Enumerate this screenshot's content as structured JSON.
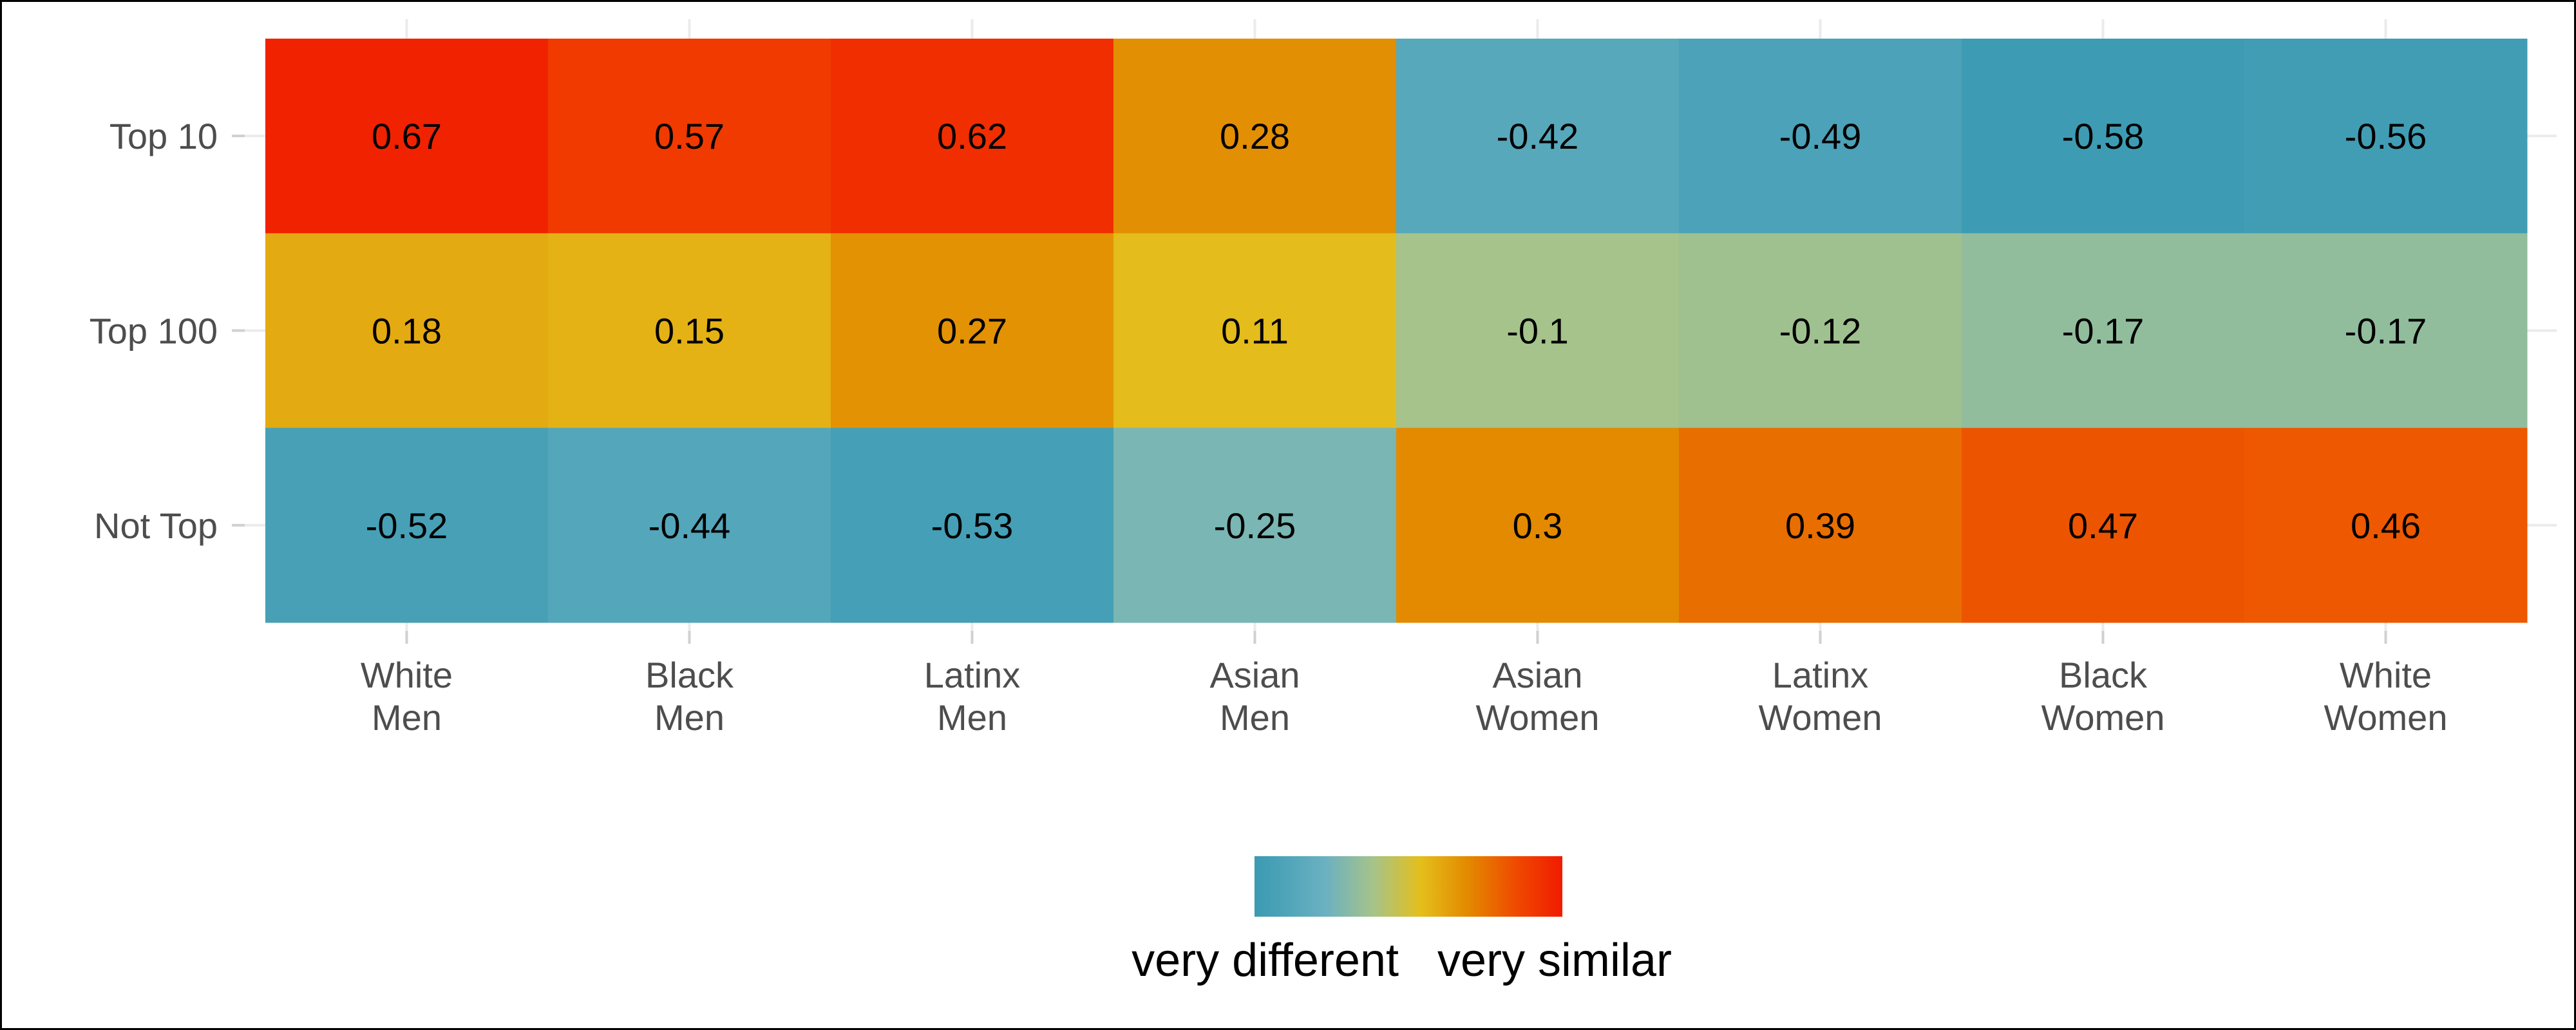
{
  "chart_data": {
    "type": "heatmap",
    "title": "",
    "xlabel": "",
    "ylabel": "",
    "columns": [
      [
        "White",
        "Men"
      ],
      [
        "Black",
        "Men"
      ],
      [
        "Latinx",
        "Men"
      ],
      [
        "Asian",
        "Men"
      ],
      [
        "Asian",
        "Women"
      ],
      [
        "Latinx",
        "Women"
      ],
      [
        "Black",
        "Women"
      ],
      [
        "White",
        "Women"
      ]
    ],
    "rows": [
      "Top 10",
      "Top 100",
      "Not Top"
    ],
    "values": [
      [
        0.67,
        0.57,
        0.62,
        0.28,
        -0.42,
        -0.49,
        -0.58,
        -0.56
      ],
      [
        0.18,
        0.15,
        0.27,
        0.11,
        -0.1,
        -0.12,
        -0.17,
        -0.17
      ],
      [
        -0.52,
        -0.44,
        -0.53,
        -0.25,
        0.3,
        0.39,
        0.47,
        0.46
      ]
    ],
    "color_scale": {
      "min": -0.6,
      "max": 0.7,
      "stops": [
        {
          "value": -0.6,
          "color": "#3a9ab2"
        },
        {
          "value": -0.3,
          "color": "#6bb1c1"
        },
        {
          "value": -0.1,
          "color": "#a5c38a"
        },
        {
          "value": 0.1,
          "color": "#e4bf1c"
        },
        {
          "value": 0.3,
          "color": "#e38a00"
        },
        {
          "value": 0.5,
          "color": "#ef4b00"
        },
        {
          "value": 0.7,
          "color": "#f11b00"
        }
      ]
    },
    "legend": {
      "position": "bottom",
      "low_label": "very different",
      "high_label": "very similar"
    },
    "grid": true
  }
}
